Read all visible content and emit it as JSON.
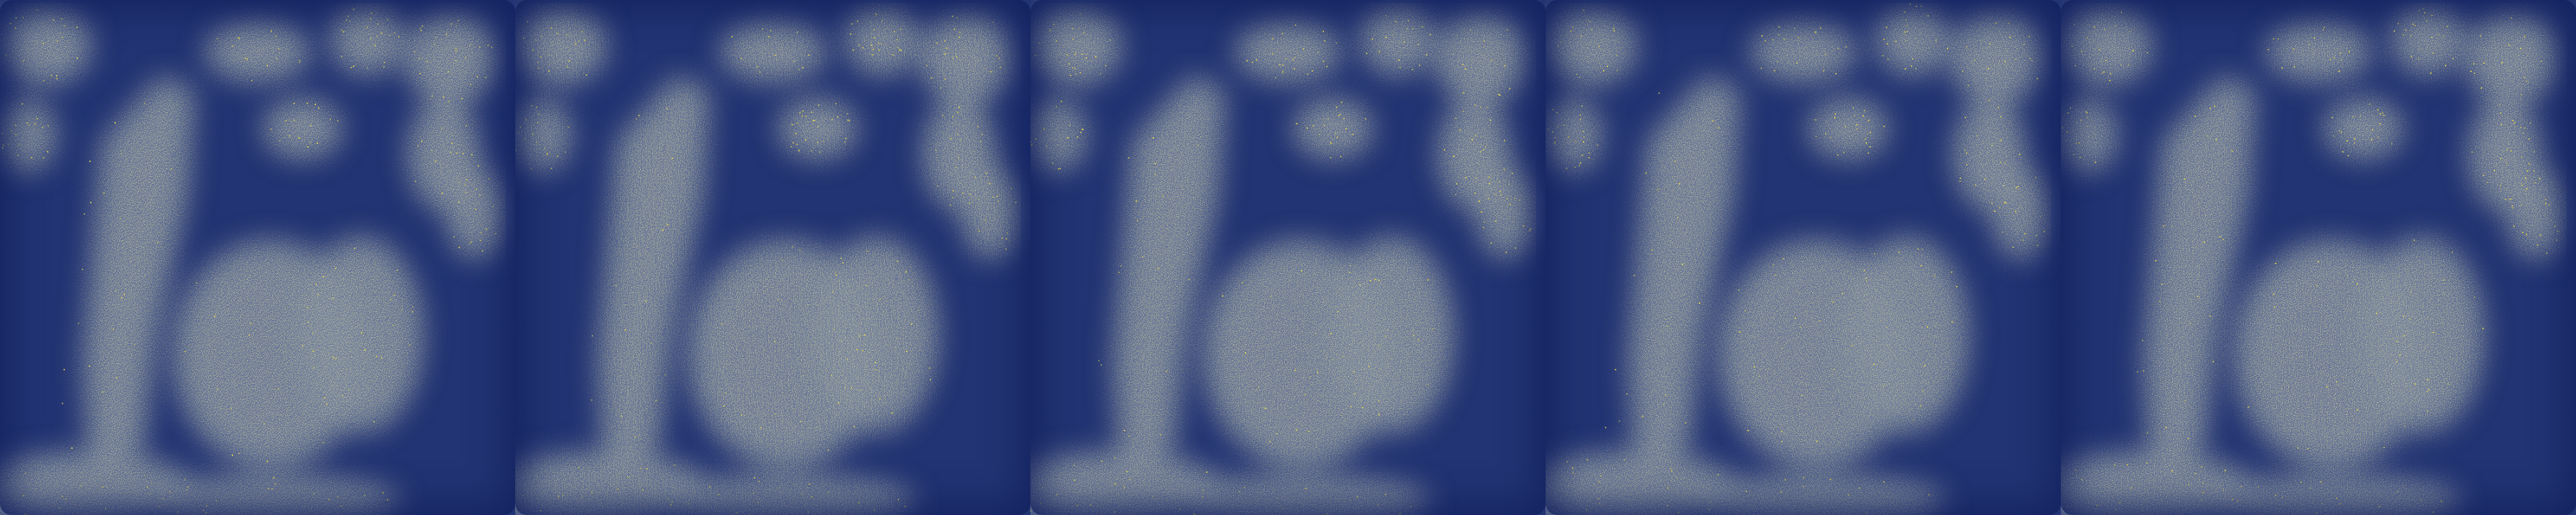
{
  "colors": {
    "background": "#223473",
    "low": "#1e3170",
    "mid": "#6f7da0",
    "high": "#e6d84a",
    "edge": "#132460"
  },
  "panels": [
    {
      "index": 1,
      "noise_seed": 11,
      "description_icon": "noisy-photo-frame"
    },
    {
      "index": 2,
      "noise_seed": 23,
      "description_icon": "noisy-photo-frame"
    },
    {
      "index": 3,
      "noise_seed": 37,
      "description_icon": "noisy-photo-frame"
    },
    {
      "index": 4,
      "noise_seed": 41,
      "description_icon": "noisy-photo-frame"
    },
    {
      "index": 5,
      "noise_seed": 53,
      "description_icon": "noisy-photo-frame"
    }
  ]
}
